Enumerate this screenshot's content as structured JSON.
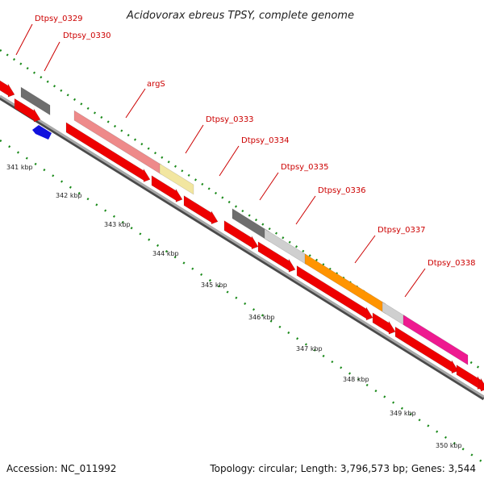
{
  "title": "Acidovorax ebreus TPSY, complete genome",
  "footer": {
    "accession": "Accession: NC_011992",
    "summary": "Topology: circular; Length: 3,796,573 bp; Genes: 3,544"
  },
  "colors": {
    "gene_red": "#ee0000",
    "backbone": "#9a9a9a",
    "tick_green": "#1a8a1a",
    "label_red": "#cc0000",
    "blue_feature": "#1111dd"
  },
  "gene_labels": [
    {
      "id": "dtpsy-0329",
      "text": "Dtpsy_0329"
    },
    {
      "id": "dtpsy-0330",
      "text": "Dtpsy_0330"
    },
    {
      "id": "args",
      "text": "argS"
    },
    {
      "id": "dtpsy-0333",
      "text": "Dtpsy_0333"
    },
    {
      "id": "dtpsy-0334",
      "text": "Dtpsy_0334"
    },
    {
      "id": "dtpsy-0335",
      "text": "Dtpsy_0335"
    },
    {
      "id": "dtpsy-0336",
      "text": "Dtpsy_0336"
    },
    {
      "id": "dtpsy-0337",
      "text": "Dtpsy_0337"
    },
    {
      "id": "dtpsy-0338",
      "text": "Dtpsy_0338"
    }
  ],
  "kbp_ticks": [
    {
      "id": "341",
      "text": "341 kbp"
    },
    {
      "id": "342",
      "text": "342 kbp"
    },
    {
      "id": "343",
      "text": "343 kbp"
    },
    {
      "id": "344",
      "text": "344 kbp"
    },
    {
      "id": "345",
      "text": "345 kbp"
    },
    {
      "id": "346",
      "text": "346 kbp"
    },
    {
      "id": "347",
      "text": "347 kbp"
    },
    {
      "id": "348",
      "text": "348 kbp"
    },
    {
      "id": "349",
      "text": "349 kbp"
    },
    {
      "id": "350",
      "text": "350 kbp"
    }
  ],
  "feature_colors": {
    "args": "#ee8a8a",
    "dtpsy-0333": "#f2e6a0",
    "dtpsy-0330": "#6e6e6e",
    "dtpsy-0335": "#6e6e6e",
    "dtpsy-0336": "#cfcfcf",
    "dtpsy-0337": "#ff9400",
    "dtpsy-0337-tail": "#cfcfcf",
    "dtpsy-0338": "#ee1a90"
  }
}
